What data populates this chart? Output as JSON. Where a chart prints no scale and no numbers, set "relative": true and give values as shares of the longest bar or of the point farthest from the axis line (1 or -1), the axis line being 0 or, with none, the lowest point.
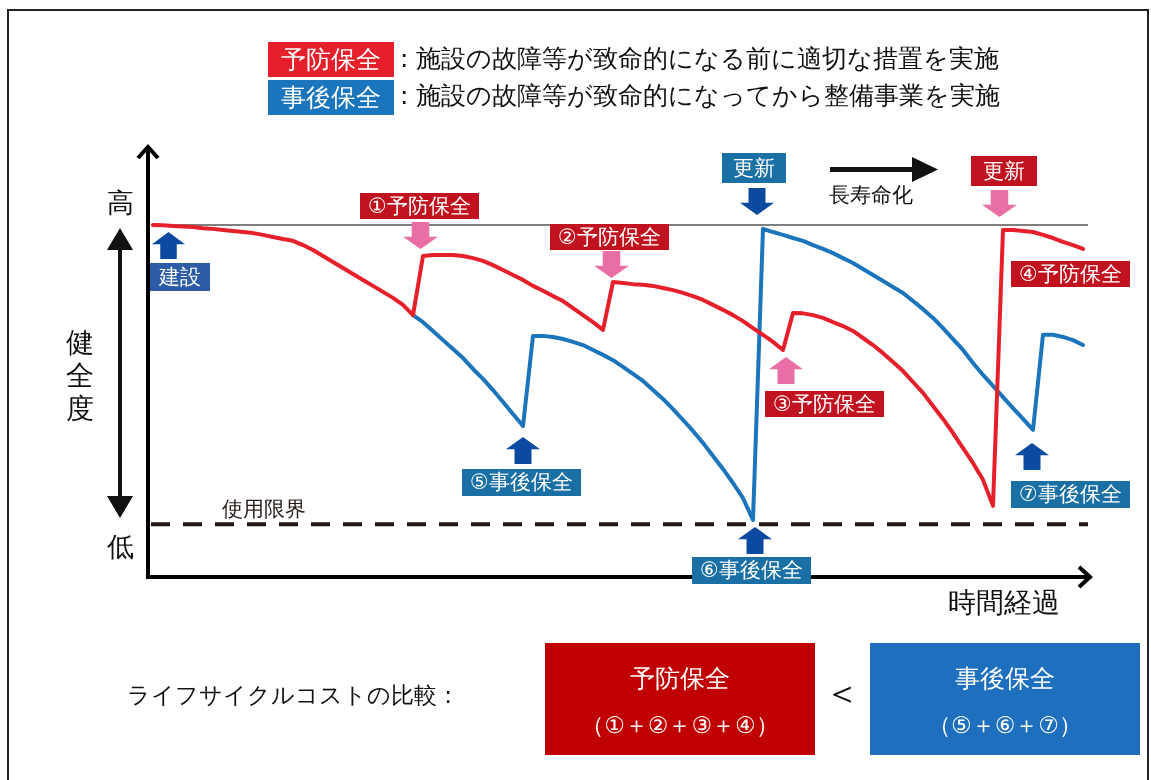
{
  "chart_data": {
    "type": "line",
    "relative": true,
    "legend": "top",
    "xlabel": "時間経過",
    "ylabel": "健全度",
    "categories": [
      null,
      null,
      null,
      null,
      null,
      null,
      null,
      null,
      null,
      null,
      null,
      null,
      null,
      null,
      null,
      null,
      null,
      null,
      null,
      null,
      null,
      null,
      null,
      null,
      null,
      null,
      null,
      null,
      null,
      null,
      null,
      null,
      null,
      null,
      null,
      null,
      null,
      null,
      null,
      null,
      null,
      null,
      null,
      null,
      null,
      null,
      null,
      null,
      null,
      null,
      null,
      null,
      null,
      null,
      null,
      null,
      null,
      null,
      null,
      null,
      null,
      null,
      null,
      null,
      null,
      null,
      null,
      null,
      null,
      null,
      null,
      null,
      null,
      null,
      null,
      null,
      null,
      null,
      null,
      null,
      null,
      null,
      null,
      null,
      null,
      null,
      null,
      null,
      null,
      null,
      null,
      null,
      null,
      null
    ],
    "series": [
      {
        "name": "予防保全",
        "color": "#e5202a",
        "values": [
          1,
          0.999,
          0.997,
          0.996,
          0.994,
          0.991,
          0.989,
          0.986,
          0.983,
          0.98,
          0.977,
          0.972,
          0.966,
          0.96,
          0.955,
          0.943,
          0.929,
          0.912,
          0.895,
          0.878,
          0.861,
          0.844,
          0.827,
          0.81,
          0.793,
          0.773,
          0.744,
          0.912,
          0.915,
          0.915,
          0.915,
          0.912,
          0.906,
          0.898,
          0.886,
          0.872,
          0.858,
          0.844,
          0.827,
          0.813,
          0.798,
          0.784,
          0.764,
          0.744,
          0.724,
          0.702,
          0.838,
          0.835,
          0.832,
          0.83,
          0.827,
          0.821,
          0.815,
          0.807,
          0.798,
          0.787,
          0.773,
          0.759,
          0.744,
          0.727,
          0.707,
          0.688,
          0.668,
          0.645,
          0.75,
          0.749,
          0.744,
          0.736,
          0.724,
          0.713,
          0.699,
          0.679,
          0.659,
          0.636,
          0.611,
          0.585,
          0.554,
          0.523,
          0.486,
          0.449,
          0.409,
          0.366,
          0.324,
          0.276,
          0.202,
          0.986,
          0.986,
          0.983,
          0.98,
          0.972,
          0.963,
          0.952,
          0.943,
          0.932
        ]
      },
      {
        "name": "事後保全",
        "color": "#1b75bc",
        "values": [
          null,
          null,
          null,
          null,
          null,
          null,
          null,
          null,
          null,
          null,
          null,
          null,
          null,
          null,
          null,
          null,
          null,
          null,
          null,
          null,
          null,
          null,
          null,
          null,
          null,
          null,
          0.744,
          0.724,
          0.699,
          0.673,
          0.648,
          0.622,
          0.591,
          0.563,
          0.531,
          0.497,
          0.463,
          0.429,
          0.685,
          0.685,
          0.682,
          0.676,
          0.668,
          0.659,
          0.645,
          0.631,
          0.616,
          0.597,
          0.577,
          0.557,
          0.531,
          0.506,
          0.477,
          0.446,
          0.415,
          0.381,
          0.344,
          0.307,
          0.267,
          0.224,
          0.162,
          0.989,
          0.98,
          0.972,
          0.963,
          0.955,
          0.943,
          0.932,
          0.92,
          0.906,
          0.892,
          0.875,
          0.858,
          0.841,
          0.824,
          0.807,
          0.784,
          0.761,
          0.736,
          0.707,
          0.676,
          0.645,
          0.608,
          0.574,
          0.543,
          0.511,
          0.48,
          0.449,
          0.418,
          0.688,
          0.688,
          0.682,
          0.673,
          0.659
        ]
      }
    ],
    "ref_lines": [
      {
        "axis": "y",
        "value": 1,
        "color": "#7f7f7f"
      },
      {
        "axis": "y",
        "value": 0.15,
        "label": "使用限界",
        "color": "#231815",
        "line_style": "dashed"
      }
    ],
    "annotations": [
      "高",
      "低",
      "建設",
      "①予防保全",
      "②予防保全",
      "更新",
      "長寿命化",
      "更新",
      "④予防保全",
      "③予防保全",
      "⑤事後保全",
      "⑦事後保全",
      "⑥事後保全",
      ": 施設の故障等が致命的になる前に適切な措置を実施",
      ": 施設の故障等が致命的になってから整備事業を実施",
      "ライフサイクルコストの比較 :",
      "予防保全",
      "（①＋②＋③＋④）",
      "＜",
      "事後保全",
      "（⑤＋⑥＋⑦）"
    ]
  }
}
